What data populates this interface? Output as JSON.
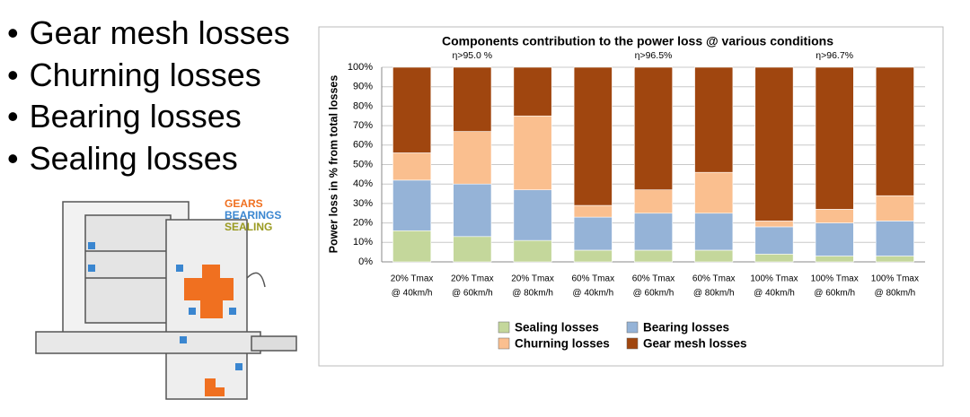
{
  "bullets": [
    "Gear mesh losses",
    "Churning losses",
    "Bearing losses",
    "Sealing losses"
  ],
  "drawing_labels": [
    {
      "text": "GEARS",
      "color": "#f07020"
    },
    {
      "text": "BEARINGS",
      "color": "#3a86d0"
    },
    {
      "text": "SEALING",
      "color": "#9a9a20"
    }
  ],
  "chart_data": {
    "type": "stacked_bar",
    "title": "Components contribution to the power loss @ various conditions",
    "y_label": "Power loss in % from total losses",
    "categories": [
      [
        "20% Tmax",
        "@ 40km/h"
      ],
      [
        "20% Tmax",
        "@ 60km/h"
      ],
      [
        "20% Tmax",
        "@ 80km/h"
      ],
      [
        "60% Tmax",
        "@ 40km/h"
      ],
      [
        "60% Tmax",
        "@ 60km/h"
      ],
      [
        "60% Tmax",
        "@ 80km/h"
      ],
      [
        "100% Tmax",
        "@ 40km/h"
      ],
      [
        "100% Tmax",
        "@ 60km/h"
      ],
      [
        "100% Tmax",
        "@ 80km/h"
      ]
    ],
    "series": [
      {
        "name": "Sealing losses",
        "color": "#c4d79b",
        "values": [
          16,
          13,
          11,
          6,
          6,
          6,
          4,
          3,
          3
        ]
      },
      {
        "name": "Bearing losses",
        "color": "#95b3d7",
        "values": [
          26,
          27,
          26,
          17,
          19,
          19,
          14,
          17,
          18
        ]
      },
      {
        "name": "Churning losses",
        "color": "#fabf8f",
        "values": [
          14,
          27,
          38,
          6,
          12,
          21,
          3,
          7,
          13
        ]
      },
      {
        "name": "Gear mesh losses",
        "color": "#a0460f",
        "values": [
          44,
          33,
          25,
          71,
          63,
          54,
          79,
          73,
          66
        ]
      }
    ],
    "annotations": [
      "η>95.0 %",
      "η>96.5%",
      "η>96.7%"
    ],
    "ylim": [
      0,
      100
    ],
    "yticks": [
      {
        "value": 0,
        "label": "0%"
      },
      {
        "value": 10,
        "label": "10%"
      },
      {
        "value": 20,
        "label": "20%"
      },
      {
        "value": 30,
        "label": "30%"
      },
      {
        "value": 40,
        "label": "40%"
      },
      {
        "value": 50,
        "label": "50%"
      },
      {
        "value": 60,
        "label": "60%"
      },
      {
        "value": 70,
        "label": "70%"
      },
      {
        "value": 80,
        "label": "80%"
      },
      {
        "value": 90,
        "label": "90%"
      },
      {
        "value": 100,
        "label": "100%"
      }
    ],
    "grid": true
  }
}
